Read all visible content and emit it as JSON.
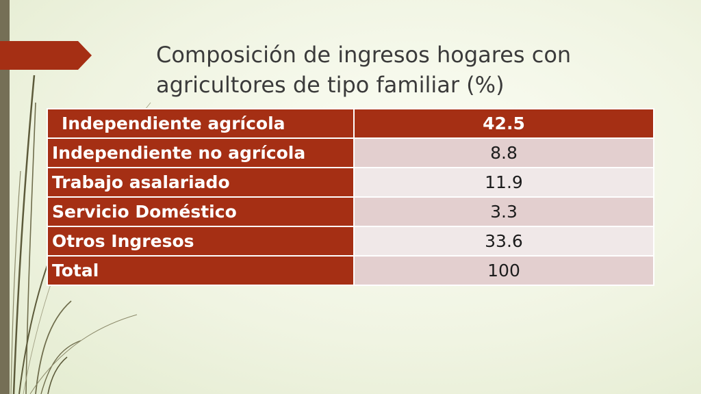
{
  "slide": {
    "title": "Composición de ingresos hogares con agricultores de tipo familiar (%)"
  },
  "colors": {
    "accent": "#a52f14",
    "sidebar": "#756f56",
    "row_light": "#f0e8e8",
    "row_pink": "#e3cfcf"
  },
  "table": {
    "rows": [
      {
        "label": "Independiente agrícola",
        "value": "42.5"
      },
      {
        "label": "Independiente no agrícola",
        "value": "8.8"
      },
      {
        "label": "Trabajo asalariado",
        "value": "11.9"
      },
      {
        "label": "Servicio Doméstico",
        "value": "3.3"
      },
      {
        "label": "Otros Ingresos",
        "value": "33.6"
      },
      {
        "label": "Total",
        "value": "100"
      }
    ]
  }
}
